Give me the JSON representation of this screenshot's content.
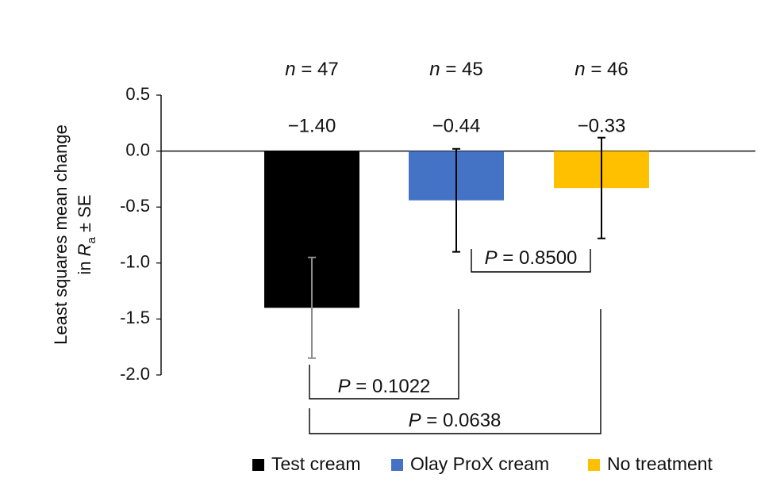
{
  "chart_data": {
    "type": "bar",
    "title": "",
    "xlabel": "",
    "ylabel": {
      "line1": "Least squares mean change",
      "line2_prefix": "in ",
      "line2_var": "R",
      "line2_sub": "a",
      "line2_suffix": " ± SE"
    },
    "ylim": [
      -2.0,
      0.5
    ],
    "yticks": [
      0.5,
      0.0,
      -0.5,
      -1.0,
      -1.5,
      -2.0
    ],
    "ytick_labels": [
      "0.5",
      "0.0",
      "-0.5",
      "-1.0",
      "-1.5",
      "-2.0"
    ],
    "grid": false,
    "legend_position": "bottom",
    "categories": [
      "Test cream",
      "Olay ProX cream",
      "No treatment"
    ],
    "values": [
      -1.4,
      -0.44,
      -0.33
    ],
    "errors": [
      0.45,
      0.46,
      0.45
    ],
    "value_labels": [
      "−1.40",
      "−0.44",
      "−0.33"
    ],
    "n_labels": [
      {
        "prefix": "n",
        "suffix": " = 47"
      },
      {
        "prefix": "n",
        "suffix": " = 45"
      },
      {
        "prefix": "n",
        "suffix": " = 46"
      }
    ],
    "colors": [
      "#000000",
      "#4472C4",
      "#FFC000"
    ],
    "error_bar_colors": [
      "#8c8c8c",
      "#000000",
      "#000000"
    ],
    "comparisons": [
      {
        "between": [
          1,
          2
        ],
        "p_prefix": "P",
        "p_suffix": " = 0.8500"
      },
      {
        "between": [
          0,
          1
        ],
        "p_prefix": "P",
        "p_suffix": " = 0.1022"
      },
      {
        "between": [
          0,
          2
        ],
        "p_prefix": "P",
        "p_suffix": " = 0.0638"
      }
    ],
    "legend": [
      {
        "label": "Test cream",
        "color": "#000000"
      },
      {
        "label": "Olay ProX cream",
        "color": "#4472C4"
      },
      {
        "label": "No treatment",
        "color": "#FFC000"
      }
    ]
  }
}
